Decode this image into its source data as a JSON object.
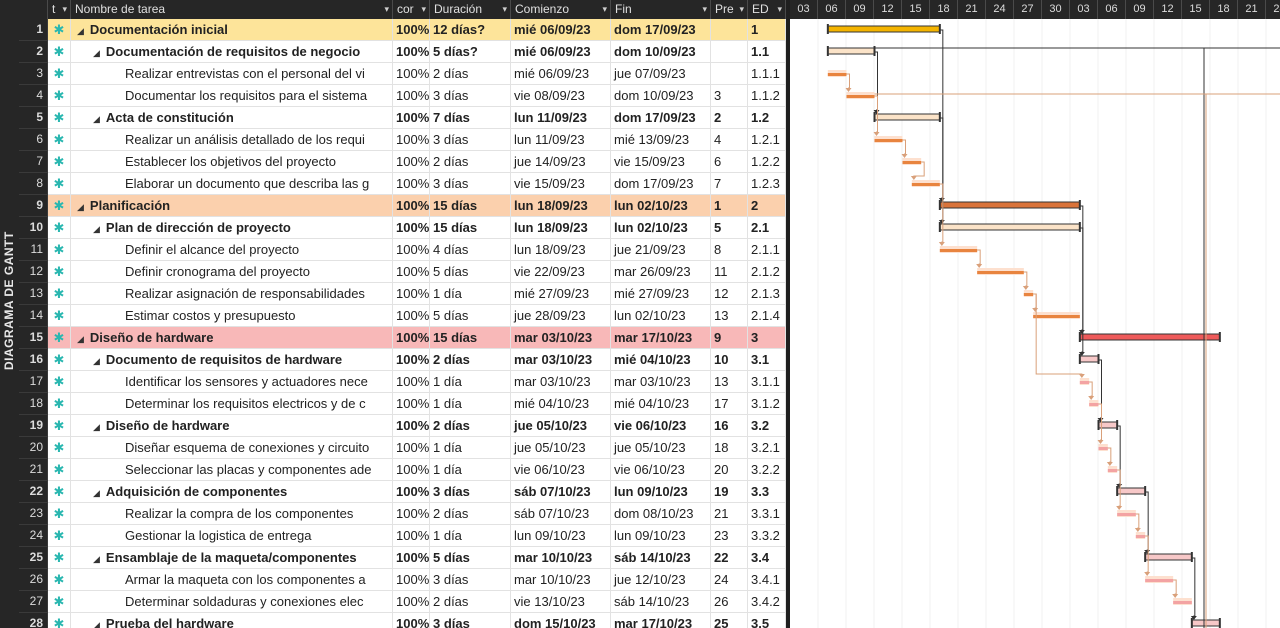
{
  "sidebar": {
    "label": "DIAGRAMA DE GANTT"
  },
  "columns": {
    "indicator": "t",
    "name": "Nombre de tarea",
    "pct": "cor",
    "duration": "Duración",
    "start": "Comienzo",
    "finish": "Fin",
    "pred": "Pre",
    "edt": "ED"
  },
  "timescale": [
    "03",
    "06",
    "09",
    "12",
    "15",
    "18",
    "21",
    "24",
    "27",
    "30",
    "03",
    "06",
    "09",
    "12",
    "15",
    "18",
    "21",
    "24"
  ],
  "colors": {
    "summary_yellow": "#f4b400",
    "summary_orange": "#d9733a",
    "summary_pink": "#ee5a5a",
    "task_orange": "#e8843f",
    "task_pink": "#f3a3a3",
    "link": "#d9a07a"
  },
  "tasks": [
    {
      "id": "1",
      "level": 0,
      "summary": true,
      "phase": "yellow",
      "name": "Documentación inicial",
      "pct": "100%",
      "duration": "12 días?",
      "start": "mié 06/09/23",
      "finish": "dom 17/09/23",
      "pred": "",
      "edt": "1"
    },
    {
      "id": "2",
      "level": 1,
      "summary": true,
      "phase": "",
      "name": "Documentación de requisitos de negocio",
      "pct": "100%",
      "duration": "5 días?",
      "start": "mié 06/09/23",
      "finish": "dom 10/09/23",
      "pred": "",
      "edt": "1.1"
    },
    {
      "id": "3",
      "level": 2,
      "summary": false,
      "phase": "",
      "name": "Realizar entrevistas con el personal del vi",
      "pct": "100%",
      "duration": "2 días",
      "start": "mié 06/09/23",
      "finish": "jue 07/09/23",
      "pred": "",
      "edt": "1.1.1"
    },
    {
      "id": "4",
      "level": 2,
      "summary": false,
      "phase": "",
      "name": "Documentar los requisitos para el sistema",
      "pct": "100%",
      "duration": "3 días",
      "start": "vie 08/09/23",
      "finish": "dom 10/09/23",
      "pred": "3",
      "edt": "1.1.2"
    },
    {
      "id": "5",
      "level": 1,
      "summary": true,
      "phase": "",
      "name": "Acta de constitución",
      "pct": "100%",
      "duration": "7 días",
      "start": "lun 11/09/23",
      "finish": "dom 17/09/23",
      "pred": "2",
      "edt": "1.2"
    },
    {
      "id": "6",
      "level": 2,
      "summary": false,
      "phase": "",
      "name": "Realizar un análisis detallado de los requi",
      "pct": "100%",
      "duration": "3 días",
      "start": "lun 11/09/23",
      "finish": "mié 13/09/23",
      "pred": "4",
      "edt": "1.2.1"
    },
    {
      "id": "7",
      "level": 2,
      "summary": false,
      "phase": "",
      "name": "Establecer los objetivos del proyecto",
      "pct": "100%",
      "duration": "2 días",
      "start": "jue 14/09/23",
      "finish": "vie 15/09/23",
      "pred": "6",
      "edt": "1.2.2"
    },
    {
      "id": "8",
      "level": 2,
      "summary": false,
      "phase": "",
      "name": "Elaborar un documento que describa las g",
      "pct": "100%",
      "duration": "3 días",
      "start": "vie 15/09/23",
      "finish": "dom 17/09/23",
      "pred": "7",
      "edt": "1.2.3"
    },
    {
      "id": "9",
      "level": 0,
      "summary": true,
      "phase": "orange",
      "name": "Planificación",
      "pct": "100%",
      "duration": "15 días",
      "start": "lun 18/09/23",
      "finish": "lun 02/10/23",
      "pred": "1",
      "edt": "2"
    },
    {
      "id": "10",
      "level": 1,
      "summary": true,
      "phase": "",
      "name": "Plan de dirección de proyecto",
      "pct": "100%",
      "duration": "15 días",
      "start": "lun 18/09/23",
      "finish": "lun 02/10/23",
      "pred": "5",
      "edt": "2.1"
    },
    {
      "id": "11",
      "level": 2,
      "summary": false,
      "phase": "",
      "name": "Definir el alcance del proyecto",
      "pct": "100%",
      "duration": "4 días",
      "start": "lun 18/09/23",
      "finish": "jue 21/09/23",
      "pred": "8",
      "edt": "2.1.1"
    },
    {
      "id": "12",
      "level": 2,
      "summary": false,
      "phase": "",
      "name": "Definir cronograma del proyecto",
      "pct": "100%",
      "duration": "5 días",
      "start": "vie 22/09/23",
      "finish": "mar 26/09/23",
      "pred": "11",
      "edt": "2.1.2"
    },
    {
      "id": "13",
      "level": 2,
      "summary": false,
      "phase": "",
      "name": "Realizar asignación de responsabilidades",
      "pct": "100%",
      "duration": "1 día",
      "start": "mié 27/09/23",
      "finish": "mié 27/09/23",
      "pred": "12",
      "edt": "2.1.3"
    },
    {
      "id": "14",
      "level": 2,
      "summary": false,
      "phase": "",
      "name": "Estimar costos y presupuesto",
      "pct": "100%",
      "duration": "5 días",
      "start": "jue 28/09/23",
      "finish": "lun 02/10/23",
      "pred": "13",
      "edt": "2.1.4"
    },
    {
      "id": "15",
      "level": 0,
      "summary": true,
      "phase": "pink",
      "name": "Diseño de hardware",
      "pct": "100%",
      "duration": "15 días",
      "start": "mar 03/10/23",
      "finish": "mar 17/10/23",
      "pred": "9",
      "edt": "3"
    },
    {
      "id": "16",
      "level": 1,
      "summary": true,
      "phase": "",
      "name": "Documento de requisitos de hardware",
      "pct": "100%",
      "duration": "2 días",
      "start": "mar 03/10/23",
      "finish": "mié 04/10/23",
      "pred": "10",
      "edt": "3.1"
    },
    {
      "id": "17",
      "level": 2,
      "summary": false,
      "phase": "",
      "name": "Identificar los sensores y actuadores nece",
      "pct": "100%",
      "duration": "1 día",
      "start": "mar 03/10/23",
      "finish": "mar 03/10/23",
      "pred": "13",
      "edt": "3.1.1"
    },
    {
      "id": "18",
      "level": 2,
      "summary": false,
      "phase": "",
      "name": "Determinar los requisitos electricos y de c",
      "pct": "100%",
      "duration": "1 día",
      "start": "mié 04/10/23",
      "finish": "mié 04/10/23",
      "pred": "17",
      "edt": "3.1.2"
    },
    {
      "id": "19",
      "level": 1,
      "summary": true,
      "phase": "",
      "name": "Diseño de hardware",
      "pct": "100%",
      "duration": "2 días",
      "start": "jue 05/10/23",
      "finish": "vie 06/10/23",
      "pred": "16",
      "edt": "3.2"
    },
    {
      "id": "20",
      "level": 2,
      "summary": false,
      "phase": "",
      "name": "Diseñar esquema de conexiones y circuito",
      "pct": "100%",
      "duration": "1 día",
      "start": "jue 05/10/23",
      "finish": "jue 05/10/23",
      "pred": "18",
      "edt": "3.2.1"
    },
    {
      "id": "21",
      "level": 2,
      "summary": false,
      "phase": "",
      "name": "Seleccionar las placas y componentes ade",
      "pct": "100%",
      "duration": "1 día",
      "start": "vie 06/10/23",
      "finish": "vie 06/10/23",
      "pred": "20",
      "edt": "3.2.2"
    },
    {
      "id": "22",
      "level": 1,
      "summary": true,
      "phase": "",
      "name": "Adquisición de componentes",
      "pct": "100%",
      "duration": "3 días",
      "start": "sáb 07/10/23",
      "finish": "lun 09/10/23",
      "pred": "19",
      "edt": "3.3"
    },
    {
      "id": "23",
      "level": 2,
      "summary": false,
      "phase": "",
      "name": "Realizar la compra de los componentes",
      "pct": "100%",
      "duration": "2 días",
      "start": "sáb 07/10/23",
      "finish": "dom 08/10/23",
      "pred": "21",
      "edt": "3.3.1"
    },
    {
      "id": "24",
      "level": 2,
      "summary": false,
      "phase": "",
      "name": "Gestionar la logistica de entrega",
      "pct": "100%",
      "duration": "1 día",
      "start": "lun 09/10/23",
      "finish": "lun 09/10/23",
      "pred": "23",
      "edt": "3.3.2"
    },
    {
      "id": "25",
      "level": 1,
      "summary": true,
      "phase": "",
      "name": "Ensamblaje de la maqueta/componentes",
      "pct": "100%",
      "duration": "5 días",
      "start": "mar 10/10/23",
      "finish": "sáb 14/10/23",
      "pred": "22",
      "edt": "3.4"
    },
    {
      "id": "26",
      "level": 2,
      "summary": false,
      "phase": "",
      "name": "Armar la maqueta con los componentes a",
      "pct": "100%",
      "duration": "3 días",
      "start": "mar 10/10/23",
      "finish": "jue 12/10/23",
      "pred": "24",
      "edt": "3.4.1"
    },
    {
      "id": "27",
      "level": 2,
      "summary": false,
      "phase": "",
      "name": "Determinar soldaduras y conexiones elec",
      "pct": "100%",
      "duration": "2 días",
      "start": "vie 13/10/23",
      "finish": "sáb 14/10/23",
      "pred": "26",
      "edt": "3.4.2"
    },
    {
      "id": "28",
      "level": 1,
      "summary": true,
      "phase": "",
      "name": "Prueba del hardware",
      "pct": "100%",
      "duration": "3 días",
      "start": "dom 15/10/23",
      "finish": "mar 17/10/23",
      "pred": "25",
      "edt": "3.5"
    }
  ]
}
